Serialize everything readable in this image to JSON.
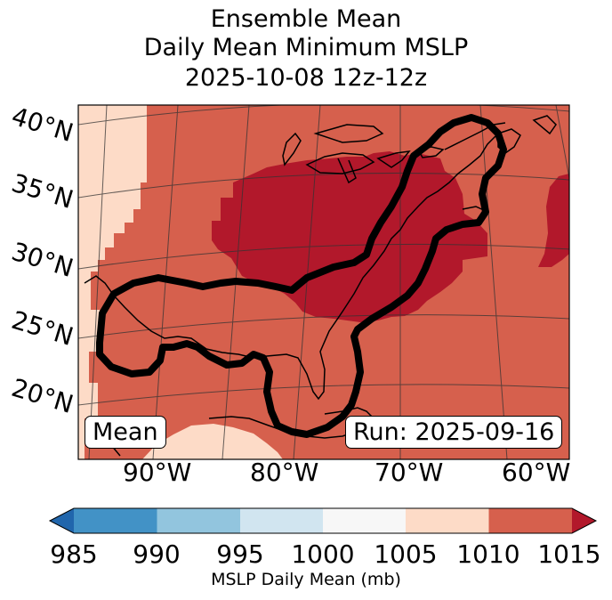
{
  "title": {
    "line1": "Ensemble Mean",
    "line2": "Daily Mean Minimum MSLP",
    "line3": "2025-10-08 12z-12z"
  },
  "map": {
    "lat_labels": [
      "40°N",
      "35°N",
      "30°N",
      "25°N",
      "20°N"
    ],
    "lon_labels": [
      "90°W",
      "80°W",
      "70°W",
      "60°W"
    ],
    "mean_label": "Mean",
    "run_label": "Run: 2025-09-16"
  },
  "colorbar": {
    "ticks": [
      "985",
      "990",
      "995",
      "1000",
      "1005",
      "1010",
      "1015"
    ],
    "label": "MSLP Daily Mean (mb)",
    "colors": [
      "#4292c6",
      "#92c5de",
      "#d1e5f0",
      "#f7f7f7",
      "#fddbc7",
      "#d6604d"
    ],
    "under_color": "#2166ac",
    "over_color": "#b2182b"
  }
}
